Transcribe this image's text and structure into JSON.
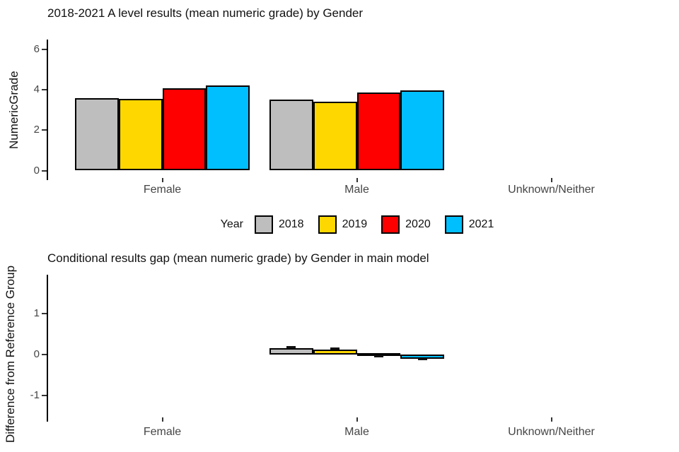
{
  "page": {
    "background": "#FFFFFF"
  },
  "colors": {
    "axis_text": "#454545",
    "axis_line": "#000000",
    "bar_outline": "#000000",
    "series_2018": "#BEBEBE",
    "series_2019": "#FFD700",
    "series_2020": "#FF0000",
    "series_2021": "#00BFFF"
  },
  "chart_data": [
    {
      "type": "bar",
      "title": "2018-2021 A level results (mean numeric grade) by Gender",
      "ylabel": "NumericGrade",
      "xlabel": "",
      "categories": [
        "Female",
        "Male",
        "Unknown/Neither"
      ],
      "series": [
        {
          "name": "2018",
          "color": "#BEBEBE",
          "values": [
            3.6,
            3.51,
            null
          ]
        },
        {
          "name": "2019",
          "color": "#FFD700",
          "values": [
            3.55,
            3.4,
            null
          ]
        },
        {
          "name": "2020",
          "color": "#FF0000",
          "values": [
            4.07,
            3.87,
            null
          ]
        },
        {
          "name": "2021",
          "color": "#00BFFF",
          "values": [
            4.21,
            3.98,
            null
          ]
        }
      ],
      "yticks": [
        6,
        4,
        2,
        0
      ],
      "ylim": [
        0,
        6.5
      ],
      "grid": false,
      "legend": {
        "title": "Year",
        "position": "bottom",
        "entries": [
          "2018",
          "2019",
          "2020",
          "2021"
        ]
      }
    },
    {
      "type": "bar",
      "title": "Conditional results gap (mean numeric grade) by Gender in main model",
      "ylabel": "Difference from Reference Group",
      "xlabel": "",
      "categories": [
        "Female",
        "Male",
        "Unknown/Neither"
      ],
      "series": [
        {
          "name": "2018",
          "color": "#BEBEBE",
          "values": [
            null,
            0.16,
            null
          ],
          "ci": [
            null,
            0.02,
            null
          ]
        },
        {
          "name": "2019",
          "color": "#FFD700",
          "values": [
            null,
            0.12,
            null
          ],
          "ci": [
            null,
            0.02,
            null
          ]
        },
        {
          "name": "2020",
          "color": "#FF0000",
          "values": [
            null,
            -0.02,
            null
          ],
          "ci": [
            null,
            0.02,
            null
          ]
        },
        {
          "name": "2021",
          "color": "#00BFFF",
          "values": [
            null,
            -0.1,
            null
          ],
          "ci": [
            null,
            0.02,
            null
          ]
        }
      ],
      "yticks": [
        1,
        0,
        -1
      ],
      "ylim": [
        -1.64,
        1.95
      ],
      "grid": false,
      "legend": null
    }
  ]
}
